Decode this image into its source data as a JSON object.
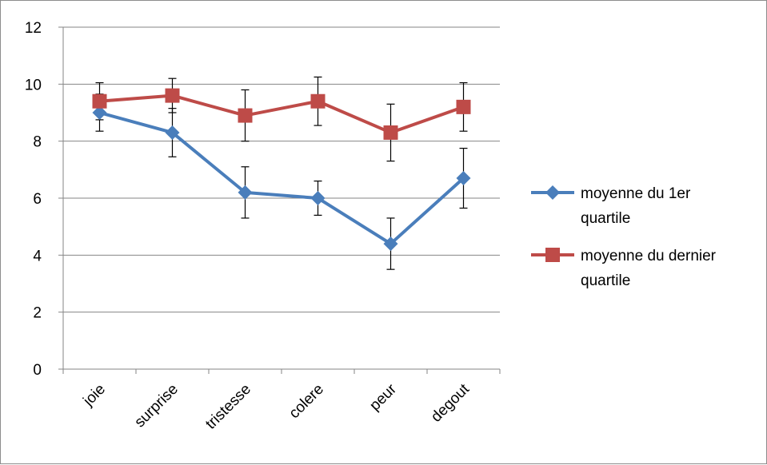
{
  "chart_data": {
    "type": "line",
    "title": "",
    "xlabel": "",
    "ylabel": "",
    "categories": [
      "joie",
      "surprise",
      "tristesse",
      "colere",
      "peur",
      "degout"
    ],
    "ylim": [
      0,
      12
    ],
    "yticks": [
      0,
      2,
      4,
      6,
      8,
      10,
      12
    ],
    "grid": "horizontal",
    "legend": "right",
    "series": [
      {
        "name": "moyenne du 1er quartile",
        "legend_lines": [
          "moyenne du 1er",
          "quartile"
        ],
        "color": "#4a7ebb",
        "marker": "diamond",
        "values": [
          9.0,
          8.3,
          6.2,
          6.0,
          4.4,
          6.7
        ],
        "error": [
          0.65,
          0.85,
          0.9,
          0.6,
          0.9,
          1.05
        ]
      },
      {
        "name": "moyenne du dernier quartile",
        "legend_lines": [
          "moyenne du dernier",
          "quartile"
        ],
        "color": "#be4b48",
        "marker": "square",
        "values": [
          9.4,
          9.6,
          8.9,
          9.4,
          8.3,
          9.2
        ],
        "error": [
          0.65,
          0.6,
          0.9,
          0.85,
          1.0,
          0.85
        ]
      }
    ]
  }
}
